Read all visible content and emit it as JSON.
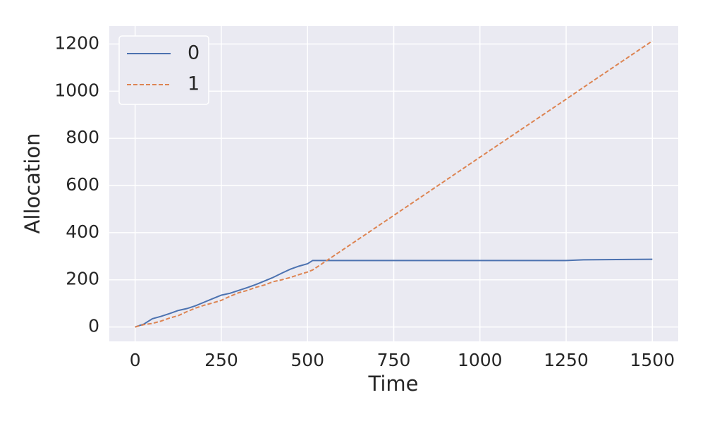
{
  "chart_data": {
    "type": "line",
    "x_label": "Time",
    "y_label": "Allocation",
    "x": [
      0,
      25,
      50,
      75,
      100,
      125,
      150,
      175,
      200,
      225,
      250,
      275,
      300,
      325,
      350,
      375,
      400,
      425,
      450,
      475,
      500,
      515,
      550,
      750,
      1000,
      1250,
      1300,
      1500
    ],
    "series": [
      {
        "name": "0",
        "color": "#4c72b0",
        "dash": "solid",
        "values": [
          0,
          12,
          35,
          45,
          57,
          70,
          78,
          90,
          105,
          120,
          135,
          143,
          155,
          167,
          180,
          195,
          210,
          228,
          245,
          258,
          268,
          282,
          282,
          282,
          282,
          282,
          285,
          287
        ]
      },
      {
        "name": "1",
        "color": "#dd8452",
        "dash": "dashed",
        "values": [
          0,
          10,
          15,
          25,
          38,
          48,
          65,
          80,
          92,
          102,
          113,
          130,
          145,
          155,
          168,
          178,
          192,
          200,
          210,
          222,
          233,
          242,
          276,
          473,
          720,
          966,
          1016,
          1213
        ]
      }
    ],
    "xlim": [
      -75,
      1575
    ],
    "ylim": [
      -61,
      1276
    ],
    "xticks": [
      0,
      250,
      500,
      750,
      1000,
      1250,
      1500
    ],
    "yticks": [
      0,
      200,
      400,
      600,
      800,
      1000,
      1200
    ],
    "grid": true,
    "legend": "upper-left"
  }
}
